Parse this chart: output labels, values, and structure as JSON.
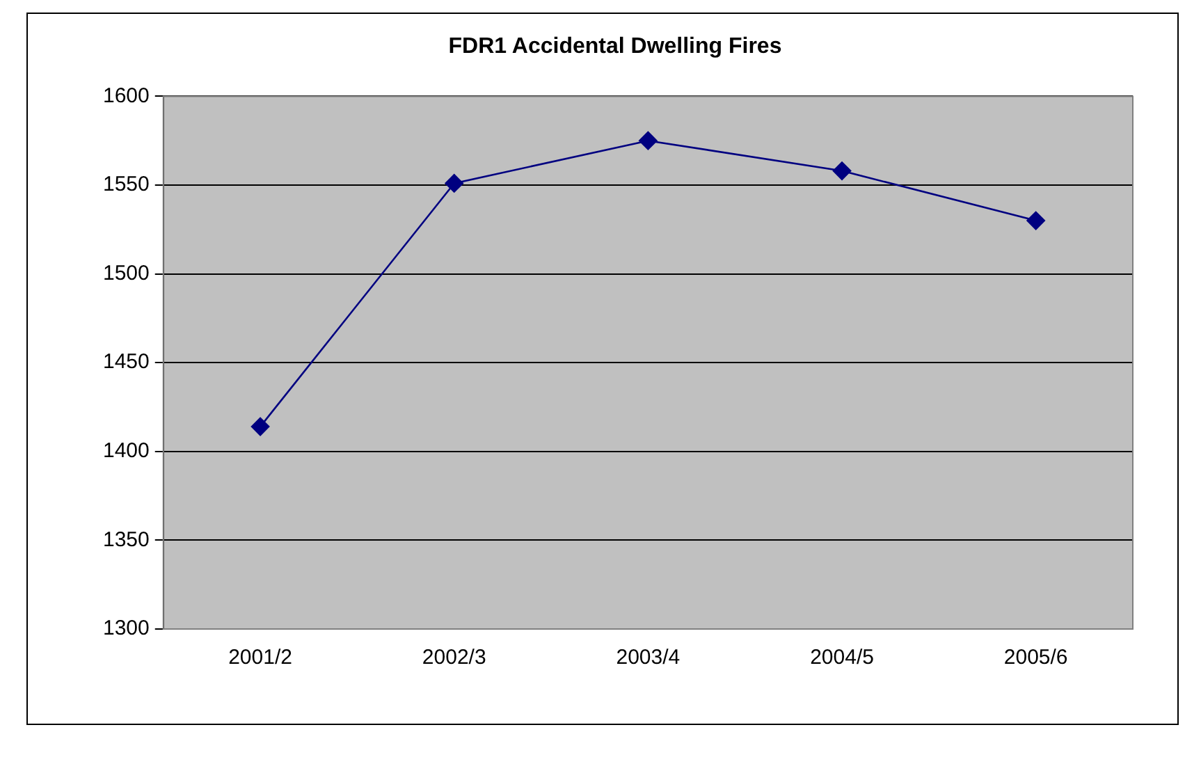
{
  "chart_data": {
    "type": "line",
    "title": "FDR1 Accidental Dwelling Fires",
    "categories": [
      "2001/2",
      "2002/3",
      "2003/4",
      "2004/5",
      "2005/6"
    ],
    "series": [
      {
        "color": "#000080",
        "values": [
          1414,
          1551,
          1575,
          1558,
          1530
        ]
      }
    ],
    "ylim": [
      1300,
      1600
    ],
    "yticks": [
      1300,
      1350,
      1400,
      1450,
      1500,
      1550,
      1600
    ],
    "grid": "y",
    "legend": false,
    "marker": "diamond",
    "line_style": "solid"
  }
}
